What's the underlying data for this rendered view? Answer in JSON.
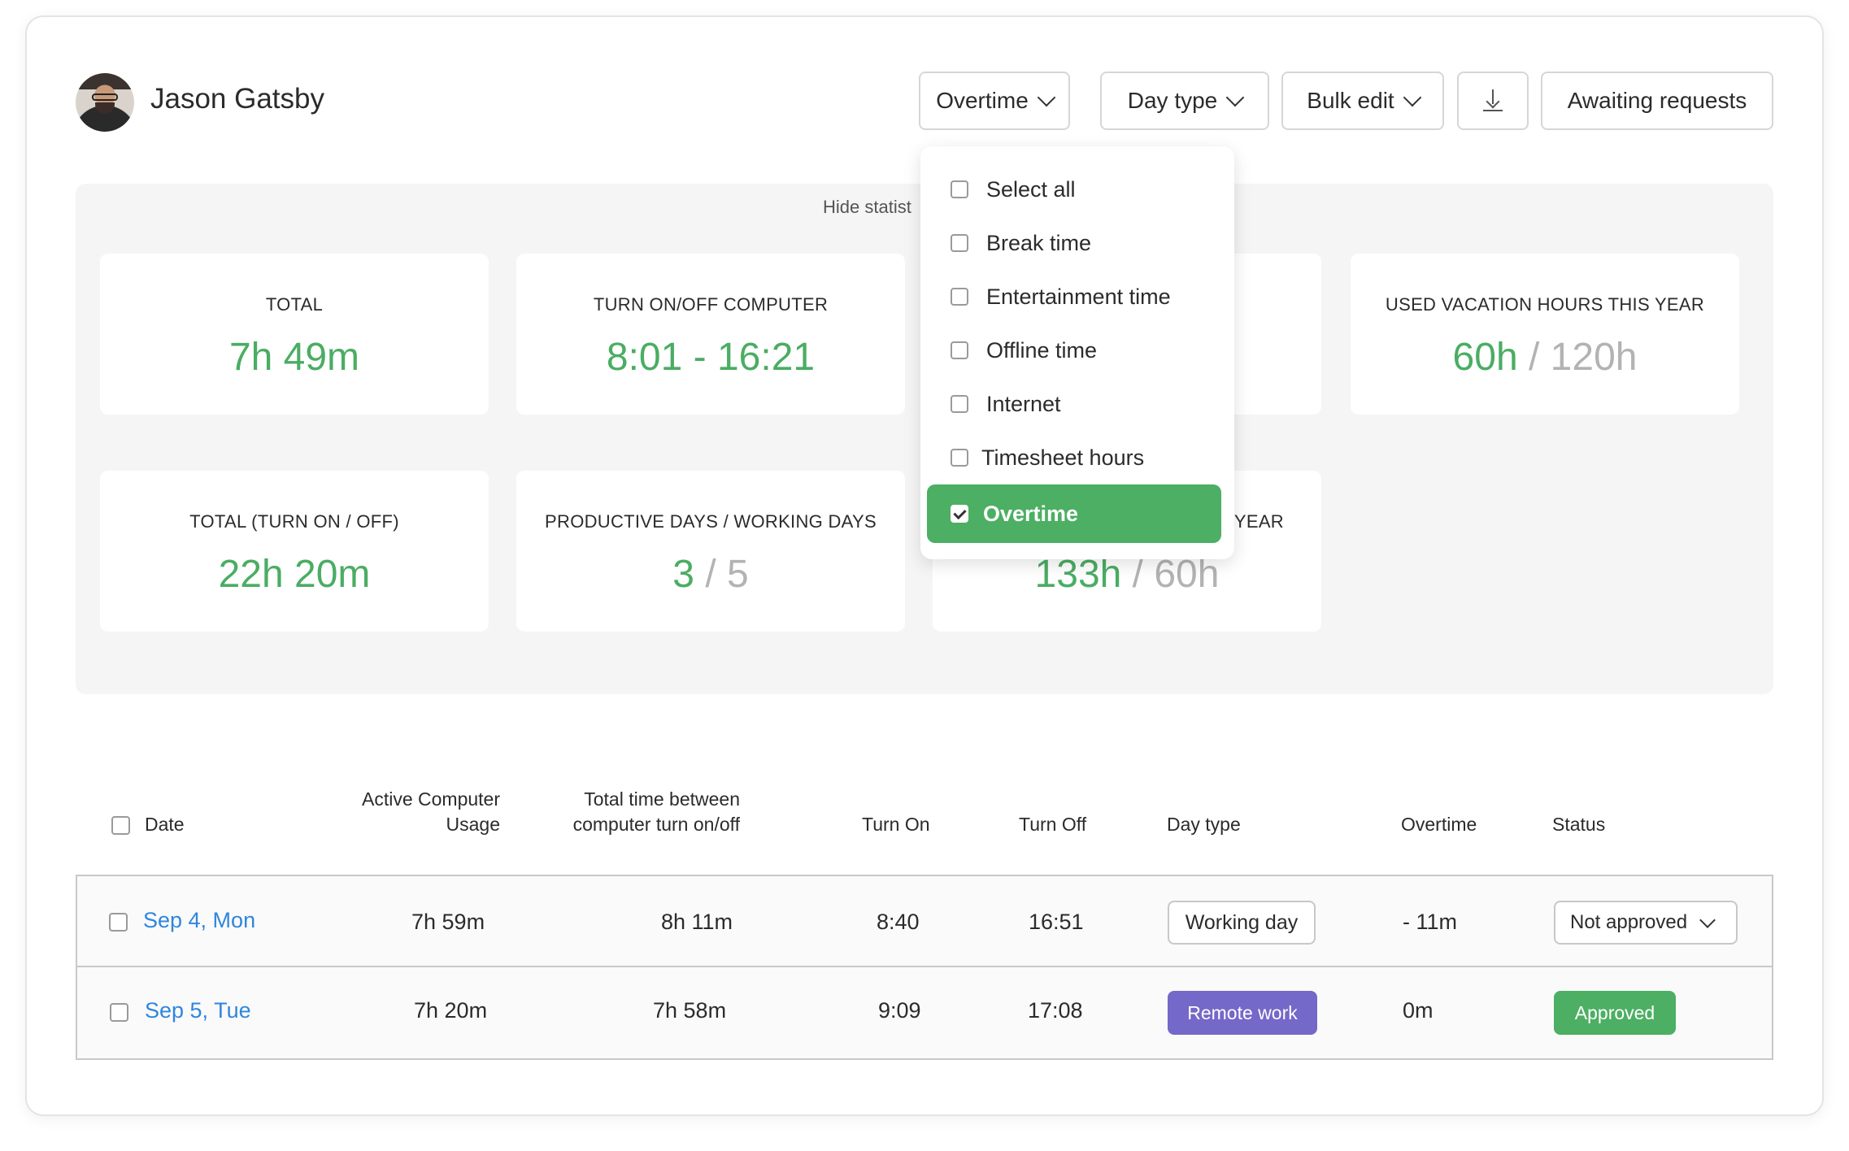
{
  "user": {
    "name": "Jason Gatsby"
  },
  "toolbar": {
    "overtime_label": "Overtime",
    "day_type_label": "Day type",
    "bulk_edit_label": "Bulk edit",
    "awaiting_label": "Awaiting requests"
  },
  "stats": {
    "hide_label": "Hide statist",
    "cards": [
      {
        "label": "TOTAL",
        "value": "7h 49m"
      },
      {
        "label": "TURN ON/OFF COMPUTER",
        "value": "8:01 - 16:21"
      },
      {
        "label": "USED VACATION HOURS THIS YEAR",
        "value": "60h",
        "sep": "/",
        "denom": "120h"
      },
      {
        "label": "TOTAL (TURN ON / OFF)",
        "value": "22h 20m"
      },
      {
        "label": "PRODUCTIVE DAYS / WORKING DAYS",
        "value": "3",
        "sep": "/",
        "denom": "5"
      },
      {
        "label": "YEAR",
        "value": "133h",
        "sep": "/",
        "denom": "60h"
      }
    ]
  },
  "menu": {
    "items": [
      {
        "label": "Select all",
        "checked": false
      },
      {
        "label": "Break time",
        "checked": false
      },
      {
        "label": "Entertainment time",
        "checked": false
      },
      {
        "label": "Offline time",
        "checked": false
      },
      {
        "label": "Internet",
        "checked": false
      },
      {
        "label": "Timesheet hours",
        "checked": false
      },
      {
        "label": "Overtime",
        "checked": true
      }
    ]
  },
  "table": {
    "headers": {
      "date": "Date",
      "active_1": "Active Computer",
      "active_2": "Usage",
      "total_1": "Total time between",
      "total_2": "computer turn on/off",
      "turn_on": "Turn On",
      "turn_off": "Turn Off",
      "day_type": "Day type",
      "overtime": "Overtime",
      "status": "Status"
    },
    "rows": [
      {
        "date": "Sep 4, Mon",
        "active": "7h 59m",
        "total": "8h 11m",
        "turn_on": "8:40",
        "turn_off": "16:51",
        "day_type": "Working day",
        "overtime": "- 11m",
        "status": "Not approved"
      },
      {
        "date": "Sep 5, Tue",
        "active": "7h 20m",
        "total": "7h 58m",
        "turn_on": "9:09",
        "turn_off": "17:08",
        "day_type": "Remote work",
        "overtime": "0m",
        "status": "Approved"
      }
    ]
  },
  "colors": {
    "accent_green": "#4caf63",
    "value_green": "#4aad63",
    "link_blue": "#2e86de",
    "remote_purple": "#7468c8"
  }
}
